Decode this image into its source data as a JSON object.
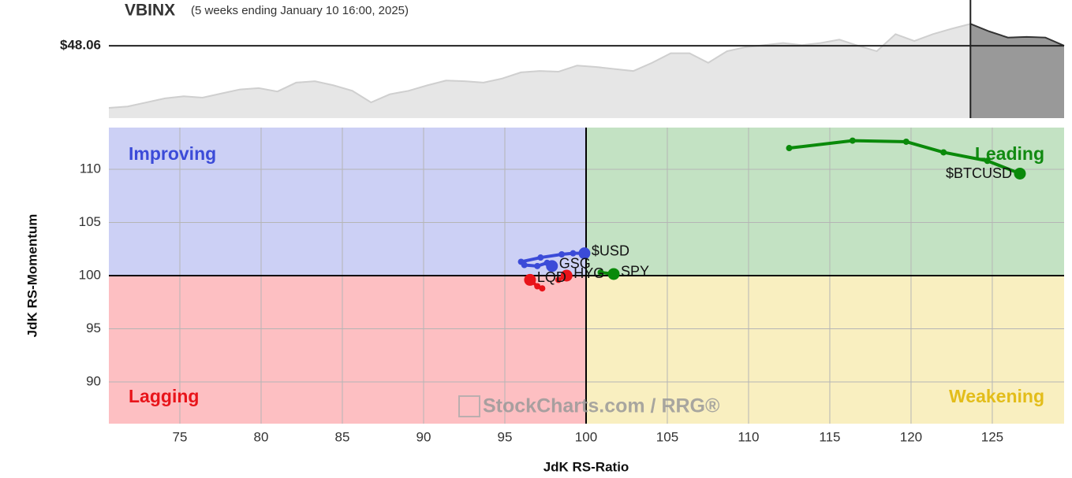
{
  "chart_data": [
    {
      "type": "area",
      "title": "VBINX",
      "subtitle": "(5 weeks ending January 10 16:00, 2025)",
      "values": [
        47.15,
        47.17,
        47.23,
        47.29,
        47.32,
        47.3,
        47.36,
        47.42,
        47.44,
        47.39,
        47.52,
        47.54,
        47.48,
        47.4,
        47.23,
        47.35,
        47.4,
        47.48,
        47.55,
        47.54,
        47.52,
        47.58,
        47.67,
        47.69,
        47.68,
        47.77,
        47.75,
        47.72,
        47.69,
        47.81,
        47.95,
        47.95,
        47.81,
        47.98,
        48.04,
        48.07,
        48.1,
        48.07,
        48.1,
        48.15,
        48.06,
        47.98,
        48.23,
        48.13,
        48.23,
        48.31,
        48.38,
        48.27,
        48.18,
        48.19,
        48.18,
        48.06
      ],
      "highlight_start_index": 46,
      "ylim": [
        47.0,
        48.73
      ],
      "yticks": [
        {
          "value": 48.06,
          "label": "$48.06"
        }
      ],
      "color": "#e6e6e6",
      "highlight_color": "#999999"
    },
    {
      "type": "scatter",
      "xlabel": "JdK RS-Ratio",
      "ylabel": "JdK RS-Momentum",
      "xlim": [
        70.63,
        129.42
      ],
      "ylim": [
        86.07,
        113.93
      ],
      "xticks": [
        75,
        80,
        85,
        90,
        95,
        100,
        105,
        110,
        115,
        120,
        125
      ],
      "yticks": [
        90,
        95,
        100,
        105,
        110
      ],
      "center": [
        100,
        100
      ],
      "grid": true,
      "quadrants": [
        {
          "label": "Improving",
          "color": "#3b4bd8",
          "fill": "#ccd0f5"
        },
        {
          "label": "Leading",
          "color": "#118a11",
          "fill": "#c3e2c3"
        },
        {
          "label": "Lagging",
          "color": "#e8141a",
          "fill": "#fdbfc2"
        },
        {
          "label": "Weakening",
          "color": "#e3bd1a",
          "fill": "#f9efc0"
        }
      ],
      "watermark": "StockCharts.com / RRG®",
      "series": [
        {
          "name": "$BTCUSD",
          "color": "#0a8a0a",
          "x": [
            112.5,
            116.4,
            119.7,
            122.0,
            124.7,
            126.7
          ],
          "values": [
            112.0,
            112.7,
            112.6,
            111.6,
            110.8,
            109.6
          ]
        },
        {
          "name": "$USD",
          "color": "#3b4bd8",
          "x": [
            96.0,
            97.2,
            98.5,
            99.2,
            99.9
          ],
          "values": [
            101.3,
            101.7,
            102.0,
            102.1,
            102.1
          ]
        },
        {
          "name": "GSG",
          "color": "#3b4bd8",
          "x": [
            96.2,
            97.0,
            97.6,
            97.9
          ],
          "values": [
            101.0,
            100.9,
            101.2,
            100.9
          ]
        },
        {
          "name": "SPY",
          "color": "#0a8a0a",
          "x": [
            100.9,
            101.7
          ],
          "values": [
            100.3,
            100.15
          ]
        },
        {
          "name": "HYG",
          "color": "#e8141a",
          "x": [
            98.3,
            98.8
          ],
          "values": [
            99.6,
            100.0
          ]
        },
        {
          "name": "LQD",
          "color": "#e8141a",
          "x": [
            97.3,
            97.0,
            96.55
          ],
          "values": [
            98.8,
            99.0,
            99.6
          ]
        }
      ]
    }
  ]
}
